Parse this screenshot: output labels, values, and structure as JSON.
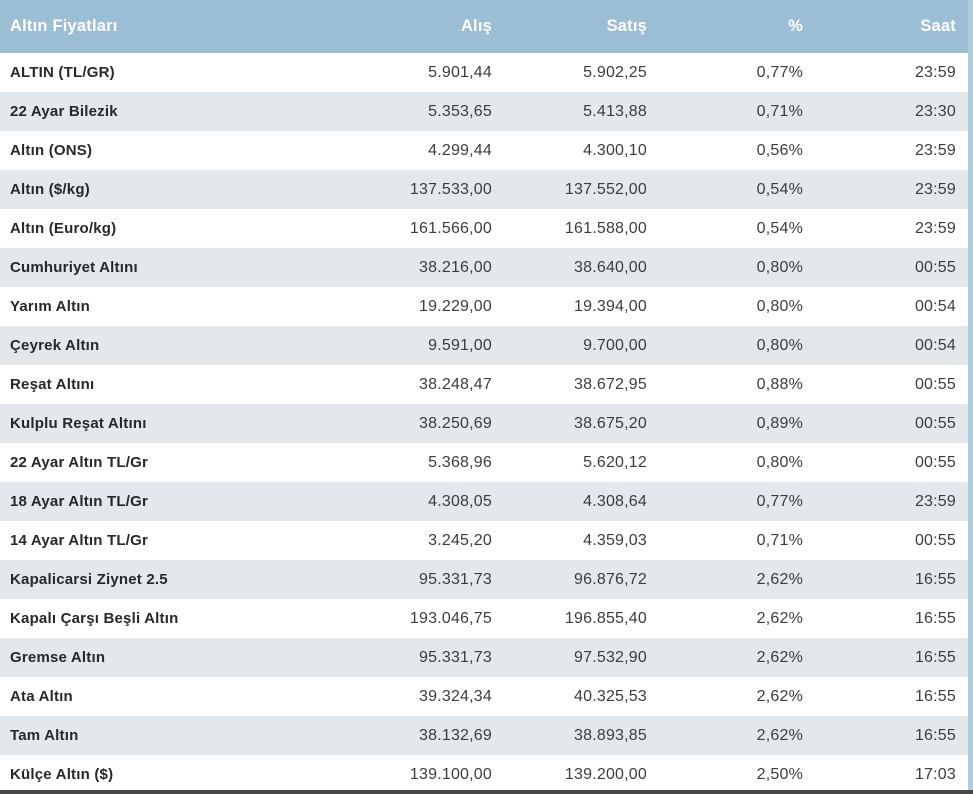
{
  "colors": {
    "header_bg": "#9cbed4",
    "row_alt_bg": "#e2e8ec",
    "stripe": "#aecbdb",
    "bottom_bar": "#474747",
    "header_text": "#ffffff",
    "name_text": "#26282a",
    "value_text": "#3a3d3f"
  },
  "table": {
    "columns": {
      "name": "Altın Fiyatları",
      "buy": "Alış",
      "sell": "Satış",
      "percent": "%",
      "time": "Saat"
    },
    "rows": [
      {
        "name": "ALTIN (TL/GR)",
        "buy": "5.901,44",
        "sell": "5.902,25",
        "percent": "0,77%",
        "time": "23:59"
      },
      {
        "name": "22 Ayar Bilezik",
        "buy": "5.353,65",
        "sell": "5.413,88",
        "percent": "0,71%",
        "time": "23:30"
      },
      {
        "name": "Altın (ONS)",
        "buy": "4.299,44",
        "sell": "4.300,10",
        "percent": "0,56%",
        "time": "23:59"
      },
      {
        "name": "Altın ($/kg)",
        "buy": "137.533,00",
        "sell": "137.552,00",
        "percent": "0,54%",
        "time": "23:59"
      },
      {
        "name": "Altın (Euro/kg)",
        "buy": "161.566,00",
        "sell": "161.588,00",
        "percent": "0,54%",
        "time": "23:59"
      },
      {
        "name": "Cumhuriyet Altını",
        "buy": "38.216,00",
        "sell": "38.640,00",
        "percent": "0,80%",
        "time": "00:55"
      },
      {
        "name": "Yarım Altın",
        "buy": "19.229,00",
        "sell": "19.394,00",
        "percent": "0,80%",
        "time": "00:54"
      },
      {
        "name": "Çeyrek Altın",
        "buy": "9.591,00",
        "sell": "9.700,00",
        "percent": "0,80%",
        "time": "00:54"
      },
      {
        "name": "Reşat Altını",
        "buy": "38.248,47",
        "sell": "38.672,95",
        "percent": "0,88%",
        "time": "00:55"
      },
      {
        "name": "Kulplu Reşat Altını",
        "buy": "38.250,69",
        "sell": "38.675,20",
        "percent": "0,89%",
        "time": "00:55"
      },
      {
        "name": "22 Ayar Altın TL/Gr",
        "buy": "5.368,96",
        "sell": "5.620,12",
        "percent": "0,80%",
        "time": "00:55"
      },
      {
        "name": "18 Ayar Altın TL/Gr",
        "buy": "4.308,05",
        "sell": "4.308,64",
        "percent": "0,77%",
        "time": "23:59"
      },
      {
        "name": "14 Ayar Altın TL/Gr",
        "buy": "3.245,20",
        "sell": "4.359,03",
        "percent": "0,71%",
        "time": "00:55"
      },
      {
        "name": "Kapalicarsi Ziynet 2.5",
        "buy": "95.331,73",
        "sell": "96.876,72",
        "percent": "2,62%",
        "time": "16:55"
      },
      {
        "name": "Kapalı Çarşı Beşli Altın",
        "buy": "193.046,75",
        "sell": "196.855,40",
        "percent": "2,62%",
        "time": "16:55"
      },
      {
        "name": "Gremse Altın",
        "buy": "95.331,73",
        "sell": "97.532,90",
        "percent": "2,62%",
        "time": "16:55"
      },
      {
        "name": "Ata Altın",
        "buy": "39.324,34",
        "sell": "40.325,53",
        "percent": "2,62%",
        "time": "16:55"
      },
      {
        "name": "Tam Altın",
        "buy": "38.132,69",
        "sell": "38.893,85",
        "percent": "2,62%",
        "time": "16:55"
      },
      {
        "name": "Külçe Altın ($)",
        "buy": "139.100,00",
        "sell": "139.200,00",
        "percent": "2,50%",
        "time": "17:03"
      }
    ]
  }
}
